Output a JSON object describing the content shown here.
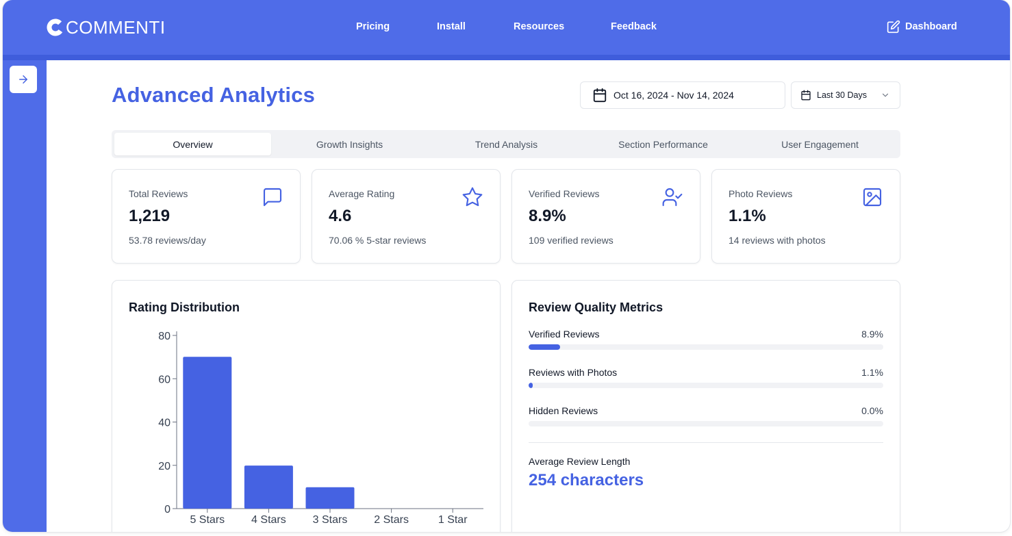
{
  "brand": {
    "name": "COMMENTI"
  },
  "nav": {
    "links": [
      "Pricing",
      "Install",
      "Resources",
      "Feedback"
    ],
    "dashboard_label": "Dashboard"
  },
  "header": {
    "title": "Advanced Analytics",
    "date_range": "Oct 16, 2024 - Nov 14, 2024",
    "period_select": "Last 30 Days"
  },
  "tabs": [
    "Overview",
    "Growth Insights",
    "Trend Analysis",
    "Section Performance",
    "User Engagement"
  ],
  "active_tab": "Overview",
  "stats": [
    {
      "label": "Total Reviews",
      "value": "1,219",
      "sub": "53.78 reviews/day",
      "icon": "message-square-icon"
    },
    {
      "label": "Average Rating",
      "value": "4.6",
      "sub": "70.06 % 5-star reviews",
      "icon": "star-icon"
    },
    {
      "label": "Verified Reviews",
      "value": "8.9%",
      "sub": "109 verified reviews",
      "icon": "user-check-icon"
    },
    {
      "label": "Photo Reviews",
      "value": "1.1%",
      "sub": "14 reviews with photos",
      "icon": "image-icon"
    }
  ],
  "rating_panel": {
    "title": "Rating Distribution"
  },
  "quality": {
    "title": "Review Quality Metrics",
    "metrics": [
      {
        "label": "Verified Reviews",
        "value": "8.9%",
        "fraction": 0.089
      },
      {
        "label": "Reviews with Photos",
        "value": "1.1%",
        "fraction": 0.011
      },
      {
        "label": "Hidden Reviews",
        "value": "0.0%",
        "fraction": 0.0
      }
    ],
    "avg_label": "Average Review Length",
    "avg_value": "254 characters"
  },
  "colors": {
    "brand": "#4f6ce8",
    "accent": "#4562e2",
    "bar": "#4562e2"
  },
  "chart_data": {
    "type": "bar",
    "categories": [
      "5 Stars",
      "4 Stars",
      "3 Stars",
      "2 Stars",
      "1 Star"
    ],
    "values": [
      70.1,
      19.9,
      9.9,
      0,
      0
    ],
    "yticks": [
      0,
      20,
      40,
      60,
      80
    ],
    "ylim": [
      0,
      80
    ],
    "grid": false
  }
}
